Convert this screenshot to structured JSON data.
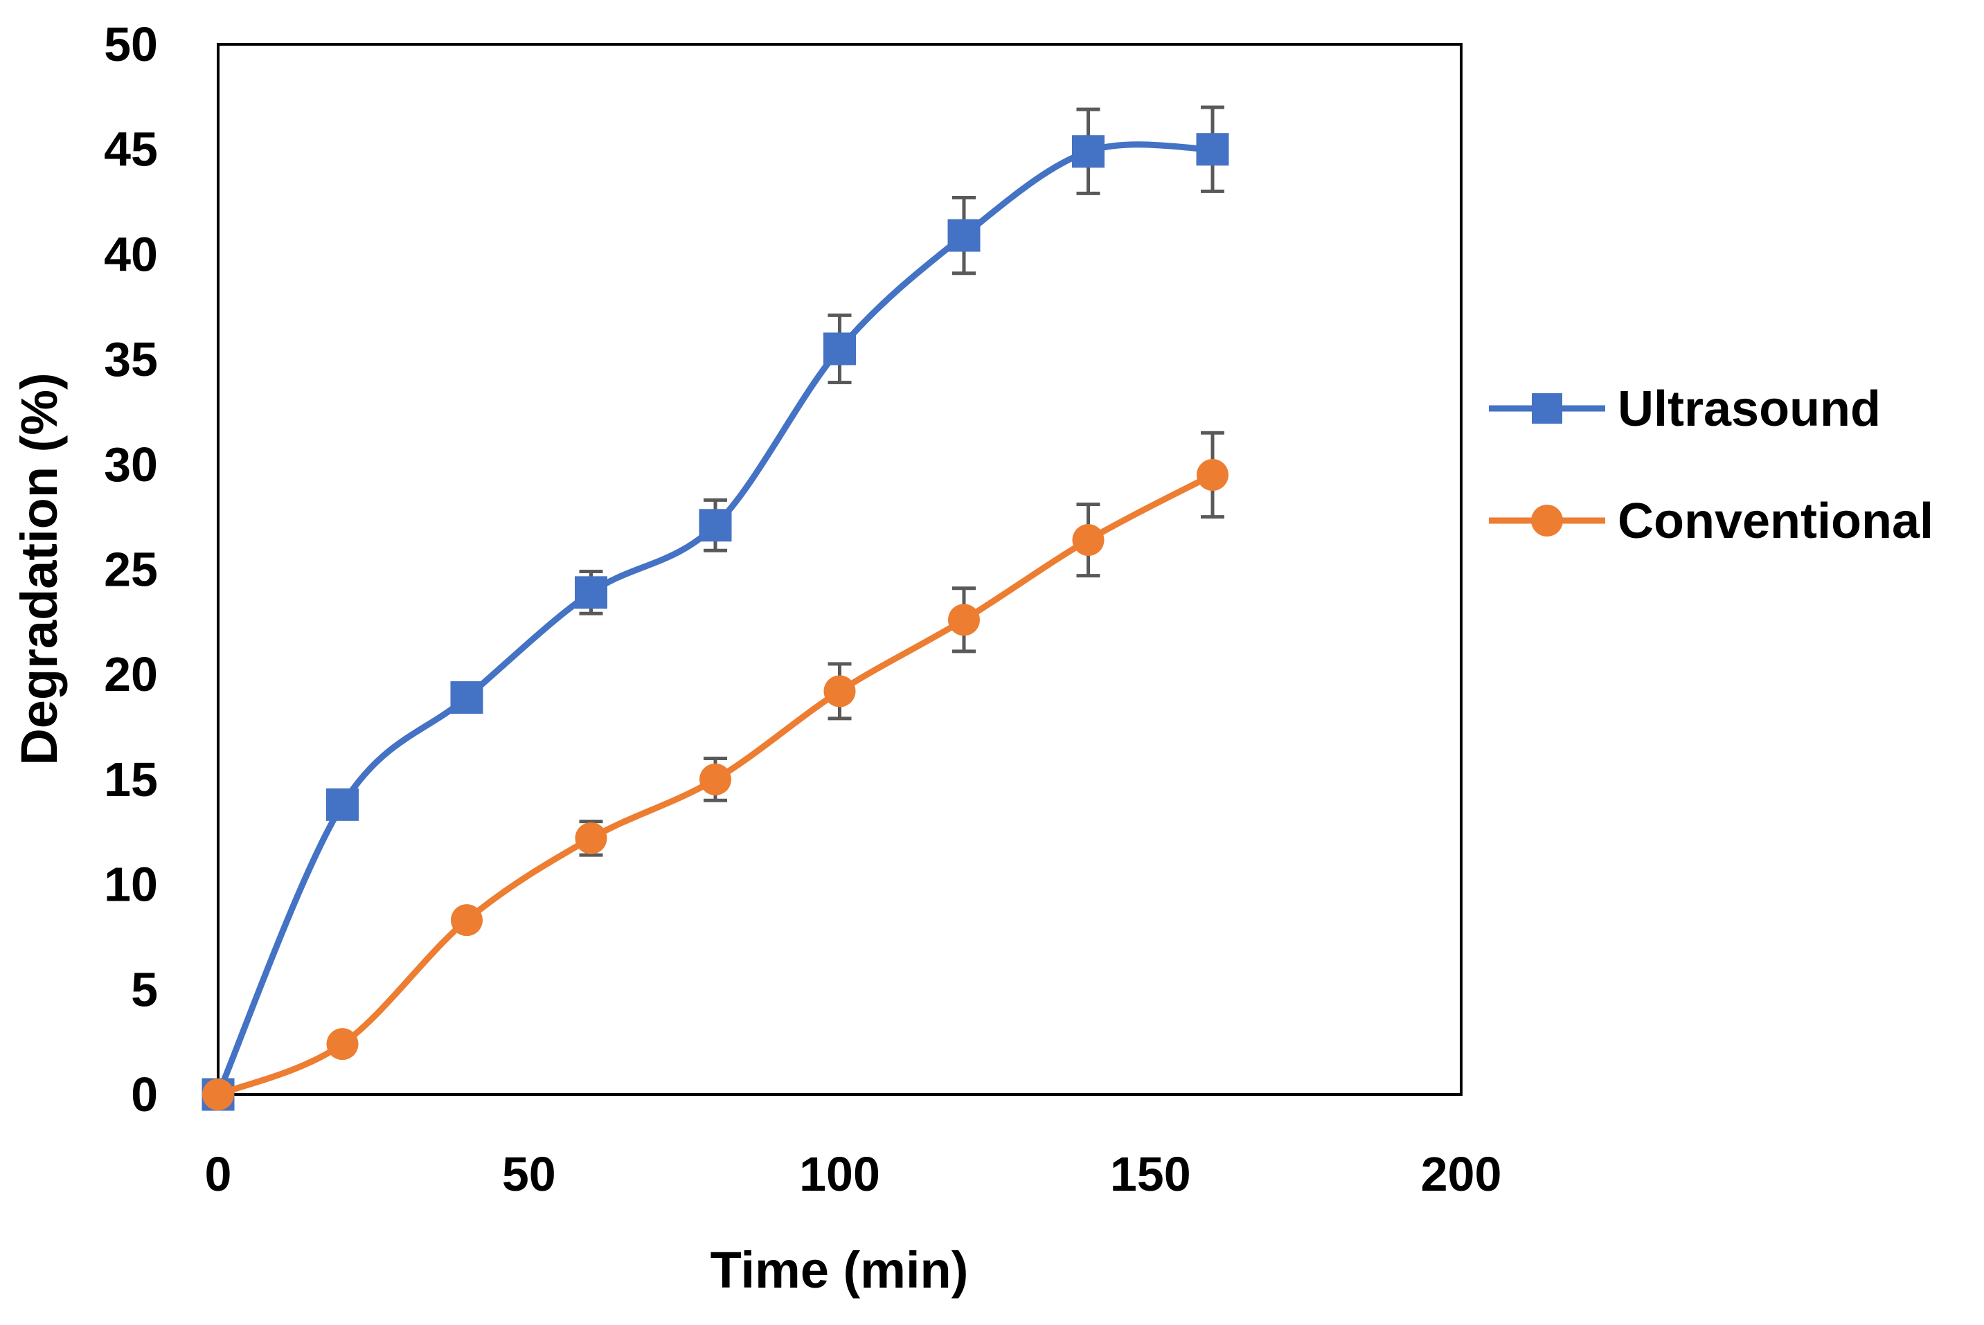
{
  "chart_data": {
    "type": "line",
    "title": "",
    "xlabel": "Time (min)",
    "ylabel": "Degradation (%)",
    "xlim": [
      0,
      200
    ],
    "ylim": [
      0,
      50
    ],
    "xticks": [
      0,
      50,
      100,
      150,
      200
    ],
    "yticks": [
      0,
      5,
      10,
      15,
      20,
      25,
      30,
      35,
      40,
      45,
      50
    ],
    "xtick_labels": [
      "0",
      "50",
      "100",
      "150",
      "200"
    ],
    "ytick_labels": [
      "0",
      "5",
      "10",
      "15",
      "20",
      "25",
      "30",
      "35",
      "40",
      "45",
      "50"
    ],
    "grid": false,
    "legend_position": "right",
    "series": [
      {
        "name": "Ultrasound",
        "color": "#4472C4",
        "marker": "square",
        "x": [
          0,
          20,
          40,
          60,
          80,
          100,
          120,
          140,
          160
        ],
        "y": [
          0,
          13.8,
          18.9,
          23.9,
          27.1,
          35.5,
          40.9,
          44.9,
          45.0
        ],
        "error": [
          0,
          0.6,
          0.6,
          1.0,
          1.2,
          1.6,
          1.8,
          2.0,
          2.0
        ]
      },
      {
        "name": "Conventional",
        "color": "#ED7D31",
        "marker": "circle",
        "x": [
          0,
          20,
          40,
          60,
          80,
          100,
          120,
          140,
          160
        ],
        "y": [
          0,
          2.4,
          8.3,
          12.2,
          15.0,
          19.2,
          22.6,
          26.4,
          29.5
        ],
        "error": [
          0,
          0.3,
          0.3,
          0.8,
          1.0,
          1.3,
          1.5,
          1.7,
          2.0
        ]
      }
    ]
  }
}
